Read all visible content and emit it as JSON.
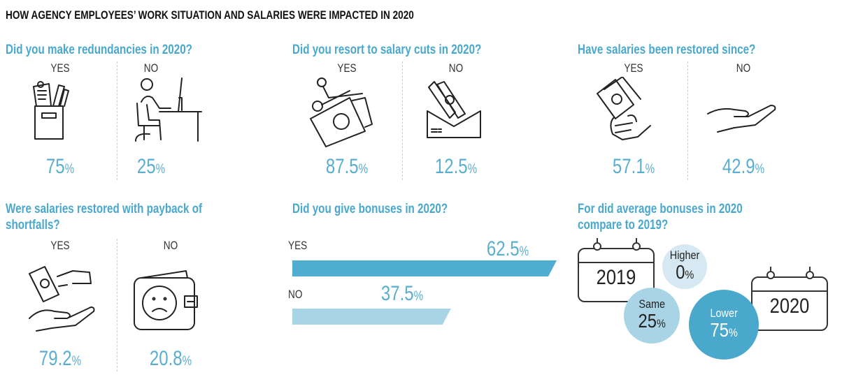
{
  "title": "HOW AGENCY EMPLOYEES’ WORK SITUATION AND SALARIES WERE IMPACTED IN 2020",
  "colors": {
    "accent": "#4aa8cc",
    "bar_yes": "#4fadd1",
    "bar_no": "#a9d4e6",
    "higher": "#d6e9f2",
    "same": "#a9d4e6",
    "lower": "#4aa8cc"
  },
  "chart_data": [
    {
      "type": "table",
      "title": "Did you make redundancies in 2020?",
      "categories": [
        "YES",
        "NO"
      ],
      "values": [
        75,
        25
      ],
      "display": [
        "75",
        "25"
      ],
      "unit": "%",
      "icons": [
        "box-of-office-items-icon",
        "person-at-desk-icon"
      ]
    },
    {
      "type": "table",
      "title": "Did you resort to salary cuts in 2020?",
      "categories": [
        "YES",
        "NO"
      ],
      "values": [
        87.5,
        12.5
      ],
      "display": [
        "87.5",
        "12.5"
      ],
      "unit": "%",
      "icons": [
        "scissors-cutting-money-icon",
        "money-envelope-icon"
      ]
    },
    {
      "type": "table",
      "title": "Have salaries been restored since?",
      "categories": [
        "YES",
        "NO"
      ],
      "values": [
        57.1,
        42.9
      ],
      "display": [
        "57.1",
        "42.9"
      ],
      "unit": "%",
      "icons": [
        "hand-holding-cash-icon",
        "empty-open-hand-icon"
      ]
    },
    {
      "type": "table",
      "title": "Were salaries restored with payback of shortfalls?",
      "categories": [
        "YES",
        "NO"
      ],
      "values": [
        79.2,
        20.8
      ],
      "display": [
        "79.2",
        "20.8"
      ],
      "unit": "%",
      "icons": [
        "hand-receiving-money-icon",
        "sad-wallet-icon"
      ]
    },
    {
      "type": "bar",
      "orientation": "horizontal",
      "title": "Did you give bonuses in 2020?",
      "categories": [
        "YES",
        "NO"
      ],
      "values": [
        62.5,
        37.5
      ],
      "display": [
        "62.5",
        "37.5"
      ],
      "unit": "%"
    },
    {
      "type": "bubble",
      "title": "For did average bonuses in 2020 compare to 2019?",
      "years": [
        "2019",
        "2020"
      ],
      "categories": [
        "Higher",
        "Same",
        "Lower"
      ],
      "values": [
        0,
        25,
        75
      ],
      "display": [
        "0",
        "25",
        "75"
      ],
      "unit": "%"
    }
  ]
}
